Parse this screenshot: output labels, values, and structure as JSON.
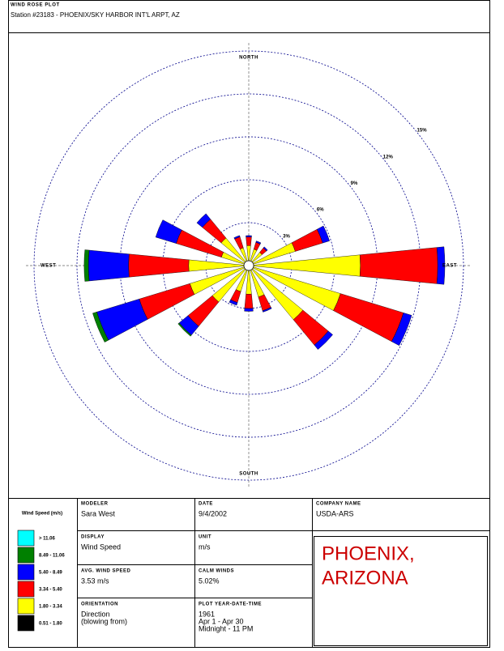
{
  "header": {
    "title": "WIND ROSE PLOT",
    "station": "Station #23183 - PHOENIX/SKY HARBOR INT'L ARPT, AZ"
  },
  "chart_data": {
    "type": "windrose",
    "categories": [
      "NORTH",
      null,
      null,
      null,
      "EAST",
      null,
      null,
      null,
      "SOUTH",
      null,
      null,
      null,
      "WEST",
      null,
      null,
      null
    ],
    "legend_title": "Wind Speed (m/s)",
    "rlim": [
      0,
      15
    ],
    "rticks": [
      {
        "value": 3,
        "label": "3%"
      },
      {
        "value": 6,
        "label": "6%"
      },
      {
        "value": 9,
        "label": "9%"
      },
      {
        "value": 12,
        "label": "12%"
      },
      {
        "value": 15,
        "label": "15%"
      }
    ],
    "grid": true,
    "series": [
      {
        "name": "0.51 - 1.80",
        "color": "#000000",
        "values": [
          0.2,
          0.2,
          0.2,
          0.2,
          0.2,
          0.2,
          0.2,
          0.2,
          0.2,
          0.2,
          0.2,
          0.2,
          0.2,
          0.2,
          0.2,
          0.2
        ]
      },
      {
        "name": "1.80 - 3.34",
        "color": "#ffff00",
        "values": [
          1.2,
          1.0,
          1.0,
          3.2,
          7.6,
          6.5,
          4.7,
          2.1,
          1.8,
          1.7,
          3.1,
          4.1,
          4.0,
          1.8,
          2.3,
          1.1
        ]
      },
      {
        "name": "3.34 - 5.40",
        "color": "#ff0000",
        "values": [
          0.6,
          0.5,
          0.4,
          2.0,
          5.4,
          4.6,
          2.3,
          1.0,
          1.0,
          0.8,
          2.2,
          3.7,
          4.2,
          3.3,
          1.7,
          0.8
        ]
      },
      {
        "name": "5.40 - 8.49",
        "color": "#0000ff",
        "values": [
          0.1,
          0.1,
          0.1,
          0.5,
          0.5,
          0.6,
          0.4,
          0.1,
          0.2,
          0.2,
          0.8,
          3.1,
          2.8,
          1.5,
          0.5,
          0.1
        ]
      },
      {
        "name": "8.49 - 11.06",
        "color": "#008000",
        "values": [
          0,
          0,
          0,
          0,
          0,
          0,
          0,
          0,
          0,
          0,
          0.1,
          0.3,
          0.3,
          0,
          0,
          0
        ]
      },
      {
        "name": "> 11.06",
        "color": "#00ffff",
        "values": [
          0,
          0,
          0,
          0,
          0,
          0,
          0,
          0,
          0,
          0,
          0,
          0,
          0,
          0,
          0,
          0
        ]
      }
    ]
  },
  "info": {
    "modeler": {
      "label": "MODELER",
      "value": [
        "Sara West"
      ]
    },
    "date": {
      "label": "DATE",
      "value": [
        "9/4/2002"
      ]
    },
    "company": {
      "label": "COMPANY NAME",
      "value": [
        "USDA-ARS"
      ]
    },
    "display": {
      "label": "DISPLAY",
      "value": [
        "Wind Speed"
      ]
    },
    "unit": {
      "label": "UNIT",
      "value": [
        "m/s"
      ]
    },
    "avg": {
      "label": "AVG. WIND SPEED",
      "value": [
        "3.53 m/s"
      ]
    },
    "calm": {
      "label": "CALM WINDS",
      "value": [
        "5.02%"
      ]
    },
    "orientation": {
      "label": "ORIENTATION",
      "value": [
        "Direction",
        "(blowing from)"
      ]
    },
    "plot": {
      "label": "PLOT YEAR-DATE-TIME",
      "value": [
        "1961",
        "Apr 1 - Apr 30",
        "Midnight  -  11 PM"
      ]
    },
    "location": [
      "PHOENIX,",
      "ARIZONA"
    ]
  }
}
